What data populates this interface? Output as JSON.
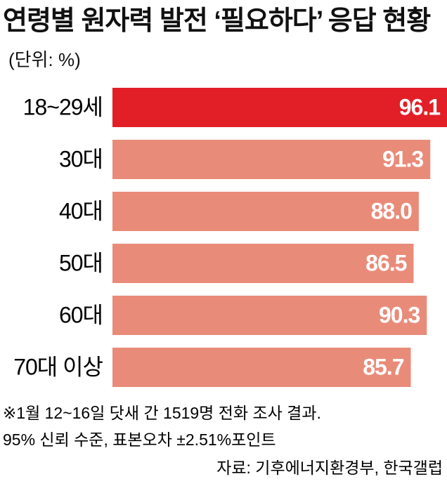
{
  "chart_data": {
    "type": "bar",
    "orientation": "horizontal",
    "title": "연령별 원자력 발전 ‘필요하다’ 응답 현황",
    "unit": "(단위: %)",
    "categories": [
      "18~29세",
      "30대",
      "40대",
      "50대",
      "60대",
      "70대 이상"
    ],
    "values": [
      96.1,
      91.3,
      88.0,
      86.5,
      90.3,
      85.7
    ],
    "value_labels": [
      "96.1",
      "91.3",
      "88.0",
      "86.5",
      "90.3",
      "85.7"
    ],
    "colors": [
      "#e21f26",
      "#e98b79",
      "#e98b79",
      "#e98b79",
      "#e98b79",
      "#e98b79"
    ],
    "notes": [
      "※1월 12~16일 닷새 간 1519명 전화 조사 결과.",
      "95% 신뢰 수준, 표본오차 ±2.51%포인트"
    ],
    "source": "자료: 기후에너지환경부, 한국갤럽"
  }
}
